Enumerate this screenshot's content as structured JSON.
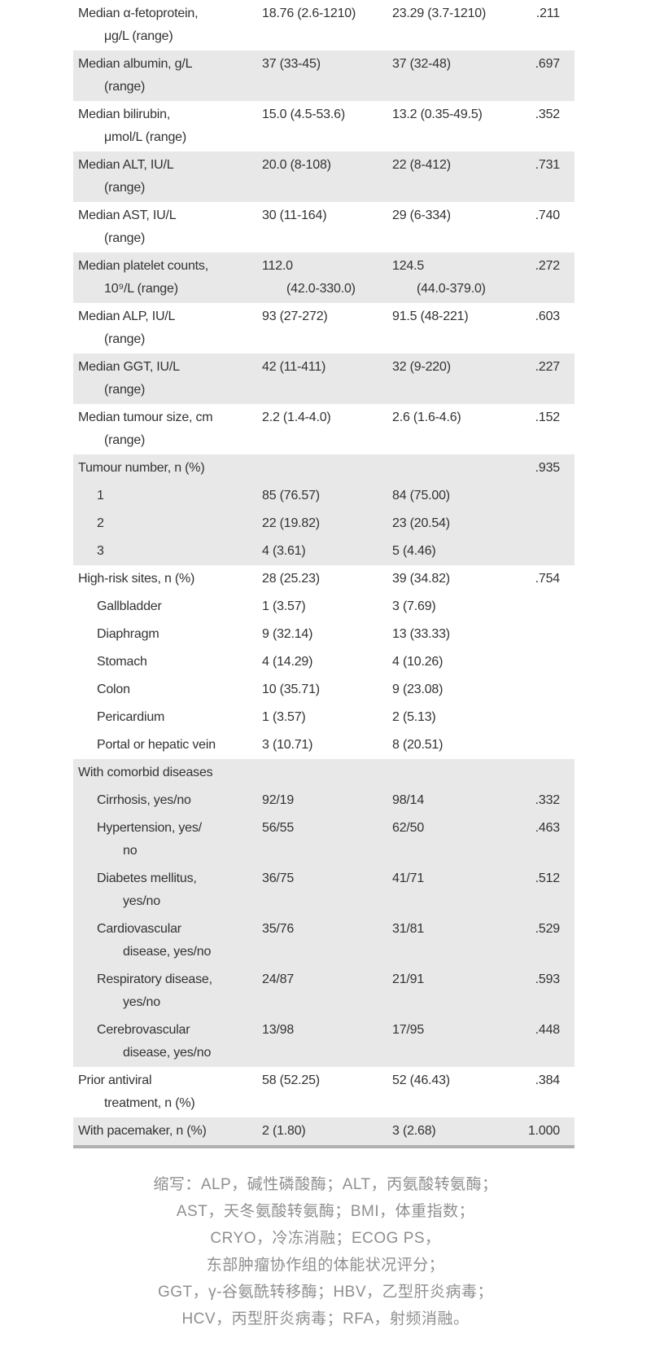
{
  "table": {
    "rows": [
      {
        "label": [
          "Median α-fetoprotein,",
          "μg/L (range)"
        ],
        "g1": [
          "18.76 (2.6-1210)"
        ],
        "g2": [
          "23.29 (3.7-1210)"
        ],
        "p": ".211",
        "shaded": false,
        "sub": false
      },
      {
        "label": [
          "Median albumin, g/L",
          "(range)"
        ],
        "g1": [
          "37 (33-45)"
        ],
        "g2": [
          "37 (32-48)"
        ],
        "p": ".697",
        "shaded": true,
        "sub": false
      },
      {
        "label": [
          "Median bilirubin,",
          "μmol/L (range)"
        ],
        "g1": [
          "15.0 (4.5-53.6)"
        ],
        "g2": [
          "13.2 (0.35-49.5)"
        ],
        "p": ".352",
        "shaded": false,
        "sub": false
      },
      {
        "label": [
          "Median ALT, IU/L",
          "(range)"
        ],
        "g1": [
          "20.0 (8-108)"
        ],
        "g2": [
          "22 (8-412)"
        ],
        "p": ".731",
        "shaded": true,
        "sub": false
      },
      {
        "label": [
          "Median AST, IU/L",
          "(range)"
        ],
        "g1": [
          "30 (11-164)"
        ],
        "g2": [
          "29 (6-334)"
        ],
        "p": ".740",
        "shaded": false,
        "sub": false
      },
      {
        "label": [
          "Median platelet counts,",
          "10⁹/L (range)"
        ],
        "g1": [
          "112.0",
          "(42.0-330.0)"
        ],
        "g2": [
          "124.5",
          "(44.0-379.0)"
        ],
        "p": ".272",
        "shaded": true,
        "sub": false
      },
      {
        "label": [
          "Median ALP, IU/L",
          "(range)"
        ],
        "g1": [
          "93 (27-272)"
        ],
        "g2": [
          "91.5 (48-221)"
        ],
        "p": ".603",
        "shaded": false,
        "sub": false
      },
      {
        "label": [
          "Median GGT, IU/L",
          "(range)"
        ],
        "g1": [
          "42 (11-411)"
        ],
        "g2": [
          "32 (9-220)"
        ],
        "p": ".227",
        "shaded": true,
        "sub": false
      },
      {
        "label": [
          "Median tumour size, cm",
          "(range)"
        ],
        "g1": [
          "2.2 (1.4-4.0)"
        ],
        "g2": [
          "2.6 (1.6-4.6)"
        ],
        "p": ".152",
        "shaded": false,
        "sub": false
      },
      {
        "label": [
          "Tumour number, n (%)"
        ],
        "g1": [],
        "g2": [],
        "p": ".935",
        "shaded": true,
        "sub": false
      },
      {
        "label": [
          "1"
        ],
        "g1": [
          "85 (76.57)"
        ],
        "g2": [
          "84 (75.00)"
        ],
        "p": "",
        "shaded": true,
        "sub": true
      },
      {
        "label": [
          "2"
        ],
        "g1": [
          "22 (19.82)"
        ],
        "g2": [
          "23 (20.54)"
        ],
        "p": "",
        "shaded": true,
        "sub": true
      },
      {
        "label": [
          "3"
        ],
        "g1": [
          "4 (3.61)"
        ],
        "g2": [
          "5 (4.46)"
        ],
        "p": "",
        "shaded": true,
        "sub": true
      },
      {
        "label": [
          "High-risk sites, n (%)"
        ],
        "g1": [
          "28 (25.23)"
        ],
        "g2": [
          "39 (34.82)"
        ],
        "p": ".754",
        "shaded": false,
        "sub": false
      },
      {
        "label": [
          "Gallbladder"
        ],
        "g1": [
          "1 (3.57)"
        ],
        "g2": [
          "3 (7.69)"
        ],
        "p": "",
        "shaded": false,
        "sub": true
      },
      {
        "label": [
          "Diaphragm"
        ],
        "g1": [
          "9 (32.14)"
        ],
        "g2": [
          "13 (33.33)"
        ],
        "p": "",
        "shaded": false,
        "sub": true
      },
      {
        "label": [
          "Stomach"
        ],
        "g1": [
          "4 (14.29)"
        ],
        "g2": [
          "4 (10.26)"
        ],
        "p": "",
        "shaded": false,
        "sub": true
      },
      {
        "label": [
          "Colon"
        ],
        "g1": [
          "10 (35.71)"
        ],
        "g2": [
          "9 (23.08)"
        ],
        "p": "",
        "shaded": false,
        "sub": true
      },
      {
        "label": [
          "Pericardium"
        ],
        "g1": [
          "1 (3.57)"
        ],
        "g2": [
          "2 (5.13)"
        ],
        "p": "",
        "shaded": false,
        "sub": true
      },
      {
        "label": [
          "Portal or hepatic vein"
        ],
        "g1": [
          "3 (10.71)"
        ],
        "g2": [
          "8 (20.51)"
        ],
        "p": "",
        "shaded": false,
        "sub": true
      },
      {
        "label": [
          "With comorbid diseases"
        ],
        "g1": [],
        "g2": [],
        "p": "",
        "shaded": true,
        "sub": false
      },
      {
        "label": [
          "Cirrhosis, yes/no"
        ],
        "g1": [
          "92/19"
        ],
        "g2": [
          "98/14"
        ],
        "p": ".332",
        "shaded": true,
        "sub": true
      },
      {
        "label": [
          "Hypertension, yes/",
          "no"
        ],
        "g1": [
          "56/55"
        ],
        "g2": [
          "62/50"
        ],
        "p": ".463",
        "shaded": true,
        "sub": true
      },
      {
        "label": [
          "Diabetes mellitus,",
          "yes/no"
        ],
        "g1": [
          "36/75"
        ],
        "g2": [
          "41/71"
        ],
        "p": ".512",
        "shaded": true,
        "sub": true
      },
      {
        "label": [
          "Cardiovascular",
          "disease, yes/no"
        ],
        "g1": [
          "35/76"
        ],
        "g2": [
          "31/81"
        ],
        "p": ".529",
        "shaded": true,
        "sub": true
      },
      {
        "label": [
          "Respiratory disease,",
          "yes/no"
        ],
        "g1": [
          "24/87"
        ],
        "g2": [
          "21/91"
        ],
        "p": ".593",
        "shaded": true,
        "sub": true
      },
      {
        "label": [
          "Cerebrovascular",
          "disease, yes/no"
        ],
        "g1": [
          "13/98"
        ],
        "g2": [
          "17/95"
        ],
        "p": ".448",
        "shaded": true,
        "sub": true
      },
      {
        "label": [
          "Prior antiviral",
          "treatment, n (%)"
        ],
        "g1": [
          "58 (52.25)"
        ],
        "g2": [
          "52 (46.43)"
        ],
        "p": ".384",
        "shaded": false,
        "sub": false
      },
      {
        "label": [
          "With pacemaker, n (%)"
        ],
        "g1": [
          "2 (1.80)"
        ],
        "g2": [
          "3 (2.68)"
        ],
        "p": "1.000",
        "shaded": true,
        "sub": false
      }
    ]
  },
  "footnote": {
    "lines": [
      "缩写：ALP，碱性磷酸酶；ALT，丙氨酸转氨酶；",
      "AST，天冬氨酸转氨酶；BMI，体重指数；",
      "CRYO，冷冻消融；ECOG PS，",
      "东部肿瘤协作组的体能状况评分；",
      "GGT，γ-谷氨酰转移酶；HBV，乙型肝炎病毒；",
      "HCV，丙型肝炎病毒；RFA，射频消融。"
    ]
  },
  "colors": {
    "shaded_row": "#e8e8e8",
    "text": "#323232",
    "bottom_border": "#b0b0b0",
    "footnote_text": "#8f8f8f"
  }
}
